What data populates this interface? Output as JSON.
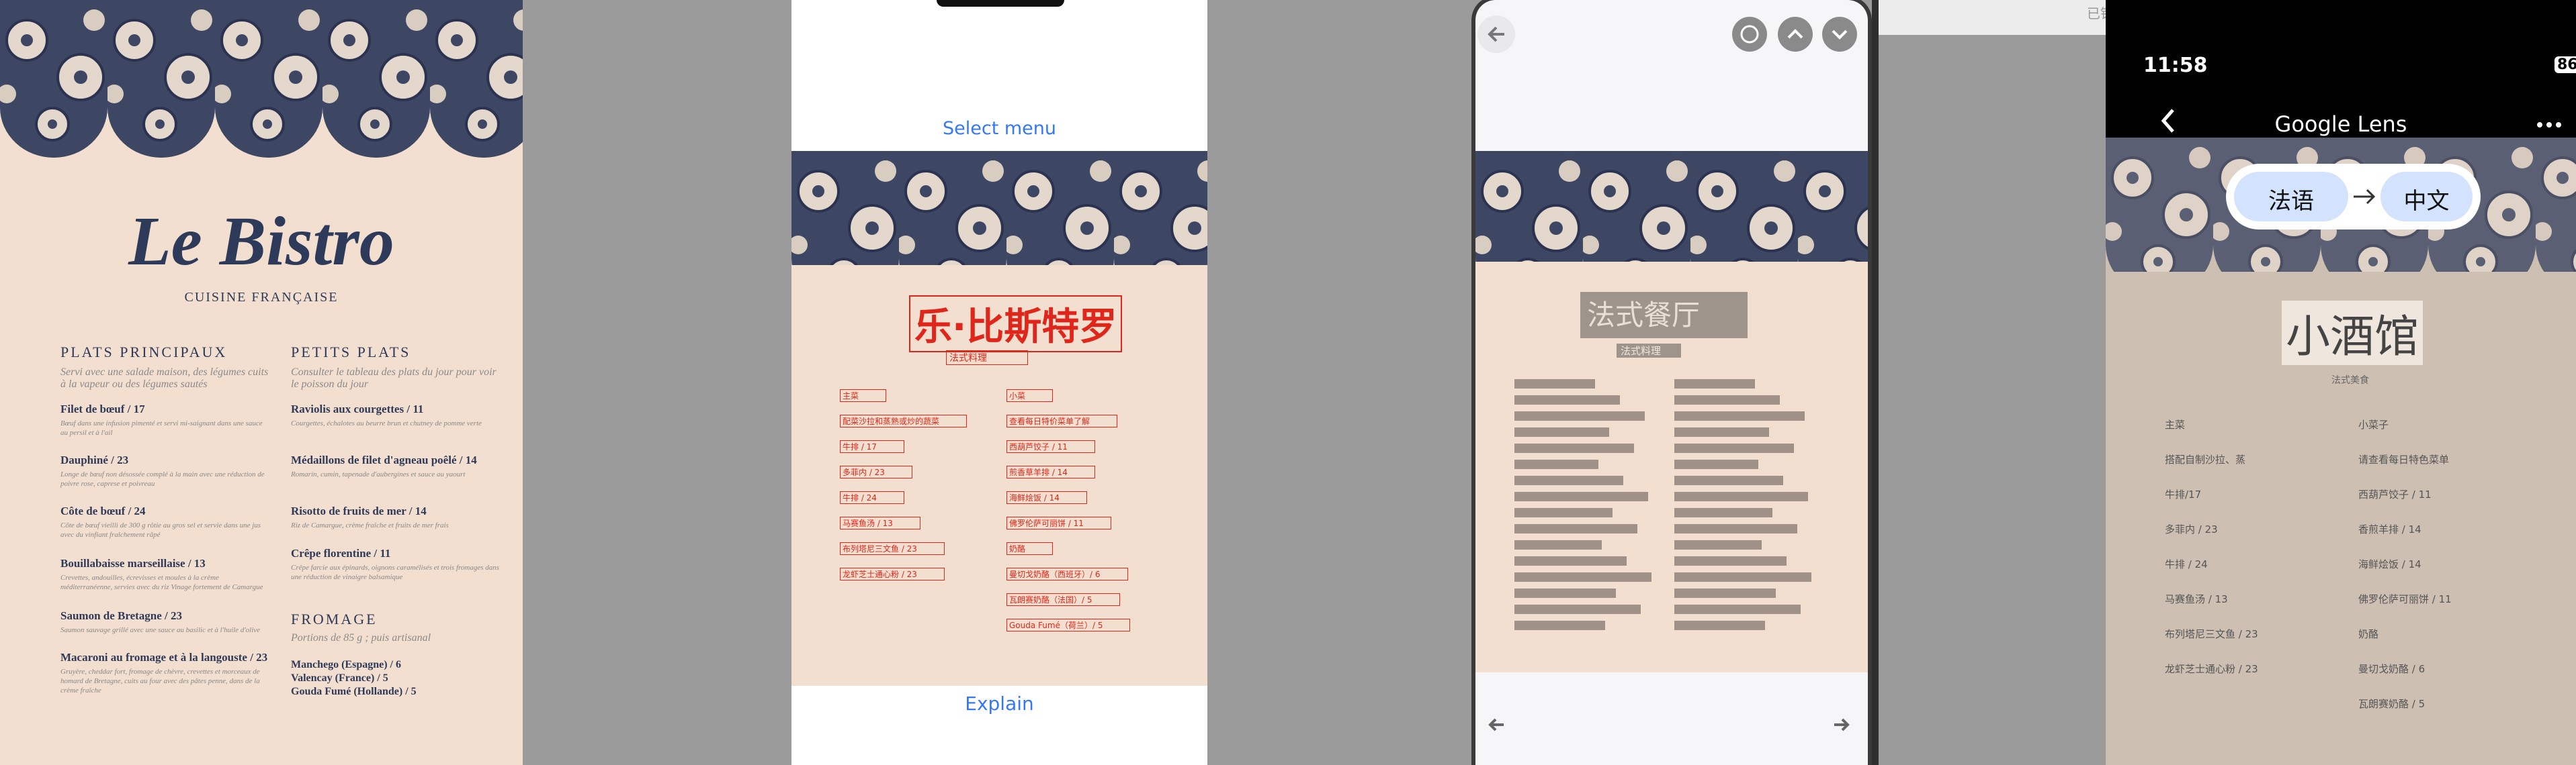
{
  "panel_menu": {
    "title": "Le Bistro",
    "subtitle": "CUISINE FRANÇAISE",
    "left": {
      "heading": "PLATS PRINCIPAUX",
      "intro": "Servi avec une salade maison, des légumes cuits à la vapeur ou des légumes sautés",
      "items": [
        {
          "name": "Filet de bœuf / 17",
          "desc": "Bœuf dans une infusion pimenté et servi mi-saignant dans une sauce au persil et à l'ail"
        },
        {
          "name": "Dauphiné / 23",
          "desc": "Longe de bœuf non désossée complé à la main avec une réduction de poivre rose, caprese et poivreau"
        },
        {
          "name": "Côte de bœuf / 24",
          "desc": "Côte de bœuf vieilli de 300 g rôtie au gros sel et servie dans une jus avec du vinfiant fraîchement râpé"
        },
        {
          "name": "Bouillabaisse marseillaise / 13",
          "desc": "Crevettes, andouilles, écrevisses et moules à la crème méditerranéenne, servies avec du riz Vinage fortement de Camargue"
        },
        {
          "name": "Saumon de Bretagne / 23",
          "desc": "Saumon sauvage grillé avec une sauce au basilic et à l'huile d'olive"
        },
        {
          "name": "Macaroni au fromage et à la langouste / 23",
          "desc": "Gruyère, cheddar fort, fromage de chèvre, crevettes et morceaux de homard de Bretagne, cuits au four avec des pâtes penne, dans de la crème fraîche"
        }
      ]
    },
    "right": {
      "heading": "PETITS PLATS",
      "intro": "Consulter le tableau des plats du jour pour voir le poisson du jour",
      "items": [
        {
          "name": "Raviolis aux courgettes / 11",
          "desc": "Courgettes, échalotes au beurre brun et chutney de pomme verte"
        },
        {
          "name": "Médaillons de filet d'agneau poêlé / 14",
          "desc": "Romarin, cumin, tapenade d'aubergines et sauce au yaourt"
        },
        {
          "name": "Risotto de fruits de mer / 14",
          "desc": "Riz de Camargue, crème fraîche et fruits de mer frais"
        },
        {
          "name": "Crêpe florentine / 11",
          "desc": "Crêpe farcie aux épinards, oignons caramélisés et trois fromages dans une réduction de vinaigre balsamique"
        }
      ],
      "heading2": "FROMAGE",
      "intro2": "Portions de 85 g ; puis artisanal",
      "cheeses": [
        "Manchego (Espagne) / 6",
        "Valencay (France) / 5",
        "Gouda Fumé (Hollande) / 5"
      ]
    }
  },
  "panel_translate": {
    "top_button": "Select menu",
    "bottom_button": "Explain",
    "title": "乐·比斯特罗",
    "subtitle": "法式料理",
    "left": [
      "主菜",
      "配菜沙拉和蒸熟或炒的蔬菜",
      "牛排 / 17",
      "多菲内 / 23",
      "牛排 / 24",
      "马赛鱼汤 / 13",
      "布列塔尼三文鱼 / 23",
      "龙虾芝士通心粉 / 23"
    ],
    "right": [
      "小菜",
      "查看每日特价菜单了解",
      "西葫芦饺子 / 11",
      "煎香草羊排 / 14",
      "海鲜烩饭 / 14",
      "佛罗伦萨可丽饼 / 11",
      "奶酪",
      "曼切戈奶酪（西班牙）/ 6",
      "瓦朗赛奶酪（法国）/ 5",
      "Gouda Fumé（荷兰）/ 5"
    ]
  },
  "panel_overlay": {
    "title": "法式餐厅",
    "subtitle": "法式料理"
  },
  "panel_lens": {
    "time": "11:58",
    "battery": "86",
    "app_title": "Google Lens",
    "source_lang": "法语",
    "target_lang": "中文",
    "title": "小酒馆",
    "subtitle": "法式美食",
    "left": [
      "主菜",
      "搭配自制沙拉、蒸",
      "牛排/17",
      "多菲内 / 23",
      "牛排 / 24",
      "马赛鱼汤 / 13",
      "布列塔尼三文鱼 / 23",
      "龙虾芝士通心粉 / 23"
    ],
    "right": [
      "小菜子",
      "请查看每日特色菜单",
      "西葫芦饺子 / 11",
      "香煎羊排 / 14",
      "海鲜烩饭 / 14",
      "佛罗伦萨可丽饼 / 11",
      "奶酪",
      "曼切戈奶酪 / 6",
      "瓦朗赛奶酪 / 5"
    ]
  },
  "window": {
    "status": "已锁定"
  }
}
